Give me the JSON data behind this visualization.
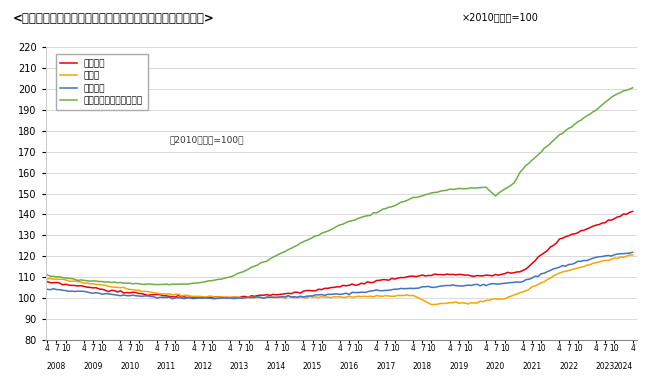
{
  "title": "<不動産価格指数（住宅）（令和６年４月分・季節調整値）>",
  "title_note": "×2010年平均=100",
  "subtitle": "（2010年平均=100）",
  "ylim": [
    80,
    220
  ],
  "yticks": [
    80,
    90,
    100,
    110,
    120,
    130,
    140,
    150,
    160,
    170,
    180,
    190,
    200,
    210,
    220
  ],
  "legend_labels": [
    "住宅総合",
    "住宅地",
    "戸建住宅",
    "マンション（区分所有）"
  ],
  "line_colors": [
    "#e8000d",
    "#f5a700",
    "#4472c4",
    "#70ad47"
  ],
  "background_color": "#ffffff",
  "plot_bg_color": "#ffffff"
}
